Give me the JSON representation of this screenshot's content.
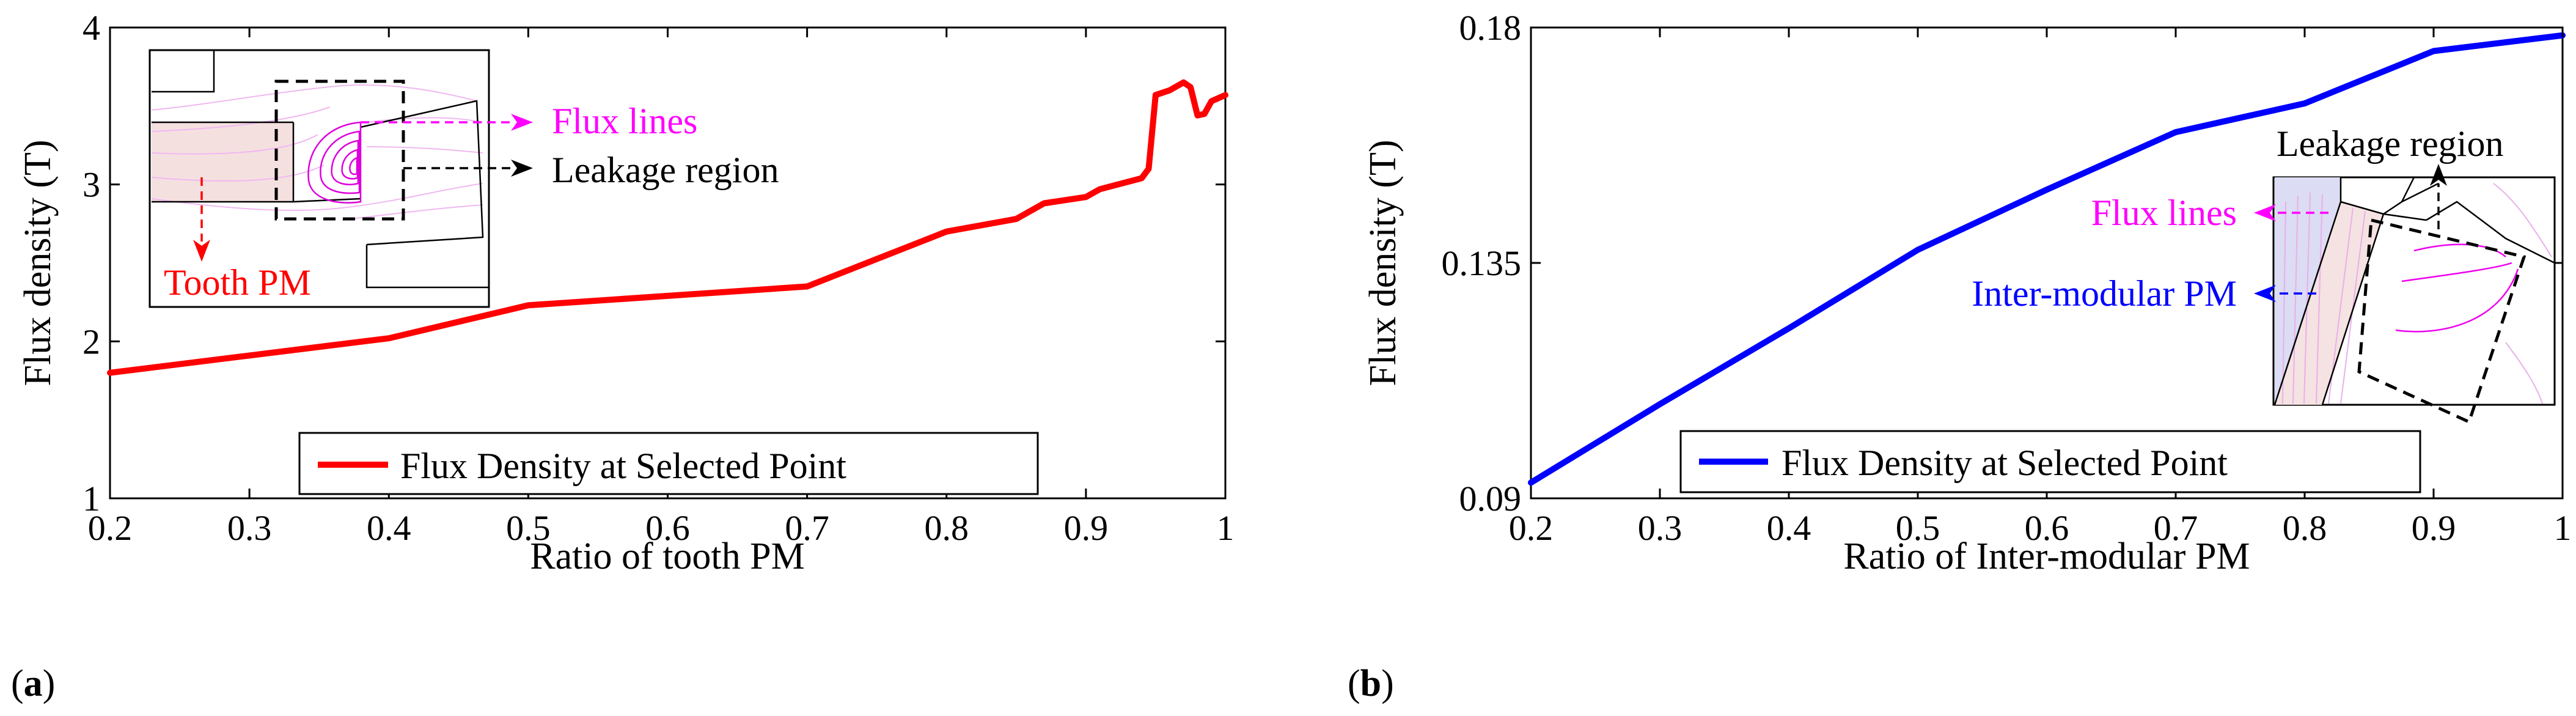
{
  "chart_data": [
    {
      "type": "line",
      "panel_label": "(a)",
      "panel_letter": "a",
      "xlabel": "Ratio of tooth PM",
      "ylabel": "Flux density (T)",
      "xlim": [
        0.2,
        1
      ],
      "ylim": [
        1,
        4
      ],
      "xticks": [
        0.2,
        0.3,
        0.4,
        0.5,
        0.6,
        0.7,
        0.8,
        0.9,
        1
      ],
      "yticks": [
        1,
        2,
        3,
        4
      ],
      "x_tick_labels": [
        "0.2",
        "0.3",
        "0.4",
        "0.5",
        "0.6",
        "0.7",
        "0.8",
        "0.9",
        "1"
      ],
      "y_tick_labels": [
        "1",
        "2",
        "3",
        "4"
      ],
      "legend": [
        "Flux Density at Selected Point"
      ],
      "legend_position": "bottom-center",
      "series": [
        {
          "name": "Flux Density at Selected Point",
          "color": "#ff0000",
          "x": [
            0.2,
            0.3,
            0.4,
            0.5,
            0.6,
            0.7,
            0.8,
            0.85,
            0.87,
            0.9,
            0.91,
            0.94,
            0.945,
            0.95,
            0.96,
            0.97,
            0.975,
            0.98,
            0.985,
            0.99,
            1.0
          ],
          "y": [
            1.8,
            1.91,
            2.02,
            2.23,
            2.29,
            2.35,
            2.7,
            2.78,
            2.88,
            2.92,
            2.97,
            3.04,
            3.1,
            3.57,
            3.6,
            3.65,
            3.62,
            3.44,
            3.45,
            3.53,
            3.57
          ]
        }
      ],
      "inset": {
        "annotations": [
          {
            "text": "Flux lines",
            "color": "#ff00ff"
          },
          {
            "text": "Leakage region",
            "color": "#000000"
          },
          {
            "text": "Tooth PM",
            "color": "#ff0000"
          }
        ]
      }
    },
    {
      "type": "line",
      "panel_label": "(b)",
      "panel_letter": "b",
      "xlabel": "Ratio of Inter-modular PM",
      "ylabel": "Flux density (T)",
      "xlim": [
        0.2,
        1
      ],
      "ylim": [
        0.09,
        0.18
      ],
      "xticks": [
        0.2,
        0.3,
        0.4,
        0.5,
        0.6,
        0.7,
        0.8,
        0.9,
        1
      ],
      "yticks": [
        0.09,
        0.135,
        0.18
      ],
      "x_tick_labels": [
        "0.2",
        "0.3",
        "0.4",
        "0.5",
        "0.6",
        "0.7",
        "0.8",
        "0.9",
        "1"
      ],
      "y_tick_labels": [
        "0.09",
        "0.135",
        "0.18"
      ],
      "legend": [
        "Flux Density at Selected Point"
      ],
      "legend_position": "bottom-center",
      "series": [
        {
          "name": "Flux Density at Selected Point",
          "color": "#0000ff",
          "x": [
            0.2,
            0.3,
            0.4,
            0.5,
            0.6,
            0.7,
            0.8,
            0.9,
            1.0
          ],
          "y": [
            0.093,
            0.108,
            0.1225,
            0.1375,
            0.149,
            0.16,
            0.1655,
            0.1755,
            0.1785
          ]
        }
      ],
      "inset": {
        "annotations": [
          {
            "text": "Leakage region",
            "color": "#000000"
          },
          {
            "text": "Flux lines",
            "color": "#ff00ff"
          },
          {
            "text": "Inter-modular PM",
            "color": "#0000ff"
          }
        ]
      }
    }
  ]
}
